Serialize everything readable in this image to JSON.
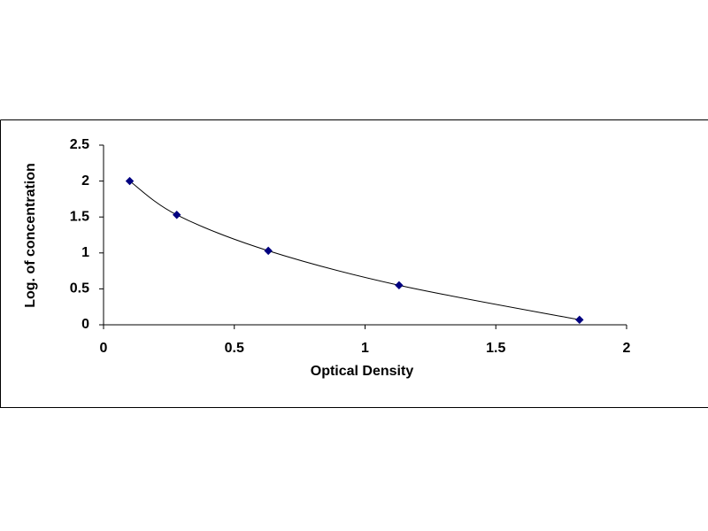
{
  "chart_data": {
    "type": "scatter",
    "x_label": "Optical Density",
    "y_label": "Log. of concentration",
    "x": [
      0.1,
      0.28,
      0.63,
      1.13,
      1.82
    ],
    "values": [
      2.0,
      1.53,
      1.03,
      0.55,
      0.07
    ],
    "color": "#000080",
    "line_color": "#000000",
    "smooth_line": true,
    "xlim": [
      0,
      2
    ],
    "xticks": [
      0,
      0.5,
      1,
      1.5,
      2
    ],
    "ylim": [
      0,
      2.5
    ],
    "yticks": [
      0,
      0.5,
      1,
      1.5,
      2,
      2.5
    ],
    "grid": false
  }
}
